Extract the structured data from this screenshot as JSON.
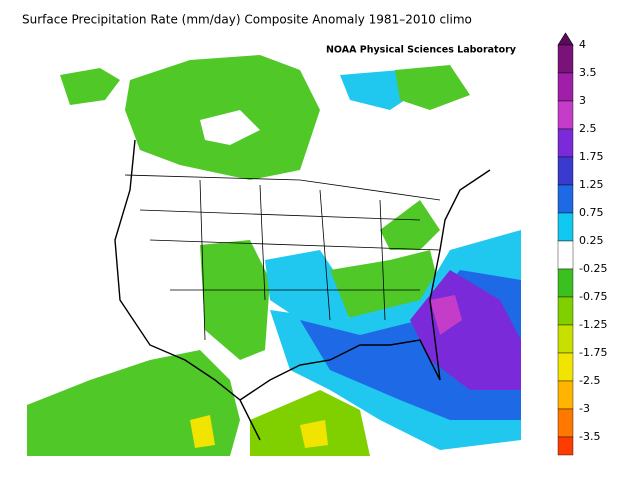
{
  "title": "Surface Precipitation Rate (mm/day) Composite Anomaly 1981–2010 climo",
  "credit": "NOAA Physical Sciences Laboratory",
  "colorbar": {
    "labels": [
      "4",
      "3.5",
      "3",
      "2.5",
      "1.75",
      "1.25",
      "0.75",
      "0.25",
      "-0.25",
      "-0.75",
      "-1.25",
      "-1.75",
      "-2.5",
      "-3",
      "-3.5"
    ],
    "colors": [
      "#5a0a5a",
      "#7a127a",
      "#a01ea8",
      "#c43cc8",
      "#7a2ad8",
      "#3a3ad0",
      "#1e6ae6",
      "#10c8f0",
      "#ffffff",
      "#3cc020",
      "#80d000",
      "#c8e000",
      "#f0e400",
      "#ffb400",
      "#ff7800",
      "#ff3c00"
    ]
  }
}
